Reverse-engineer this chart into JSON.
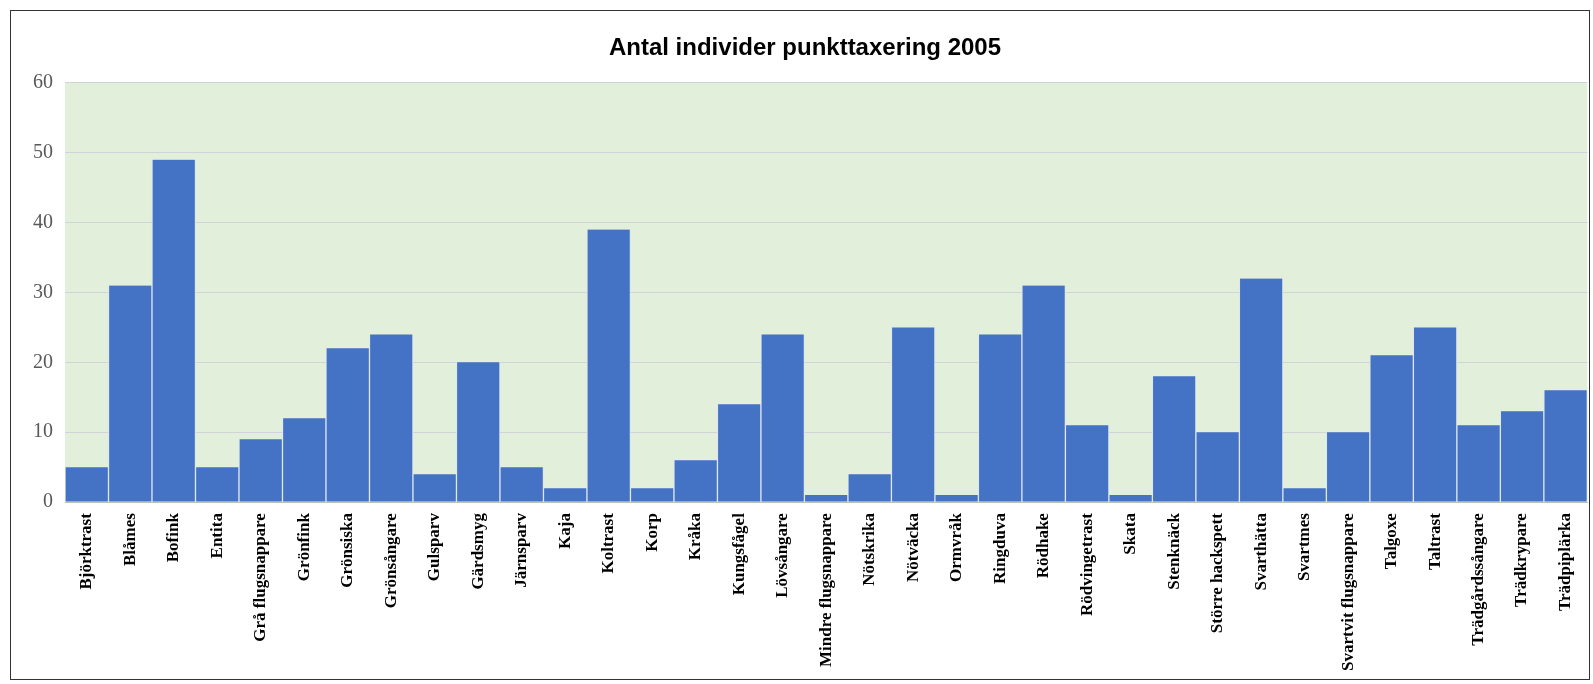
{
  "chart_data": {
    "type": "bar",
    "title": "Antal individer punkttaxering 2005",
    "categories": [
      "Björktrast",
      "Blåmes",
      "Bofink",
      "Entita",
      "Grå flugsnappare",
      "Grönfink",
      "Grönsiska",
      "Grönsångare",
      "Gulsparv",
      "Gärdsmyg",
      "Järnsparv",
      "Kaja",
      "Koltrast",
      "Korp",
      "Kråka",
      "Kungsfågel",
      "Lövsångare",
      "Mindre flugsnappare",
      "Nötskrika",
      "Nötväcka",
      "Ormvråk",
      "Ringduva",
      "Rödhake",
      "Rödvingetrast",
      "Skata",
      "Stenknäck",
      "Större hackspett",
      "Svarthätta",
      "Svartmes",
      "Svartvit flugsnappare",
      "Talgoxe",
      "Taltrast",
      "Trädgårdssångare",
      "Trädkrypare",
      "Trädpiplärka"
    ],
    "values": [
      5,
      31,
      49,
      5,
      9,
      12,
      22,
      24,
      4,
      20,
      5,
      2,
      39,
      2,
      6,
      14,
      24,
      1,
      4,
      25,
      1,
      24,
      31,
      11,
      1,
      18,
      10,
      32,
      2,
      10,
      21,
      25,
      11,
      13,
      16
    ],
    "color": "#4472c4",
    "ylim": [
      0,
      60
    ],
    "yticks": [
      0,
      10,
      20,
      30,
      40,
      50,
      60
    ],
    "grid": "y"
  }
}
